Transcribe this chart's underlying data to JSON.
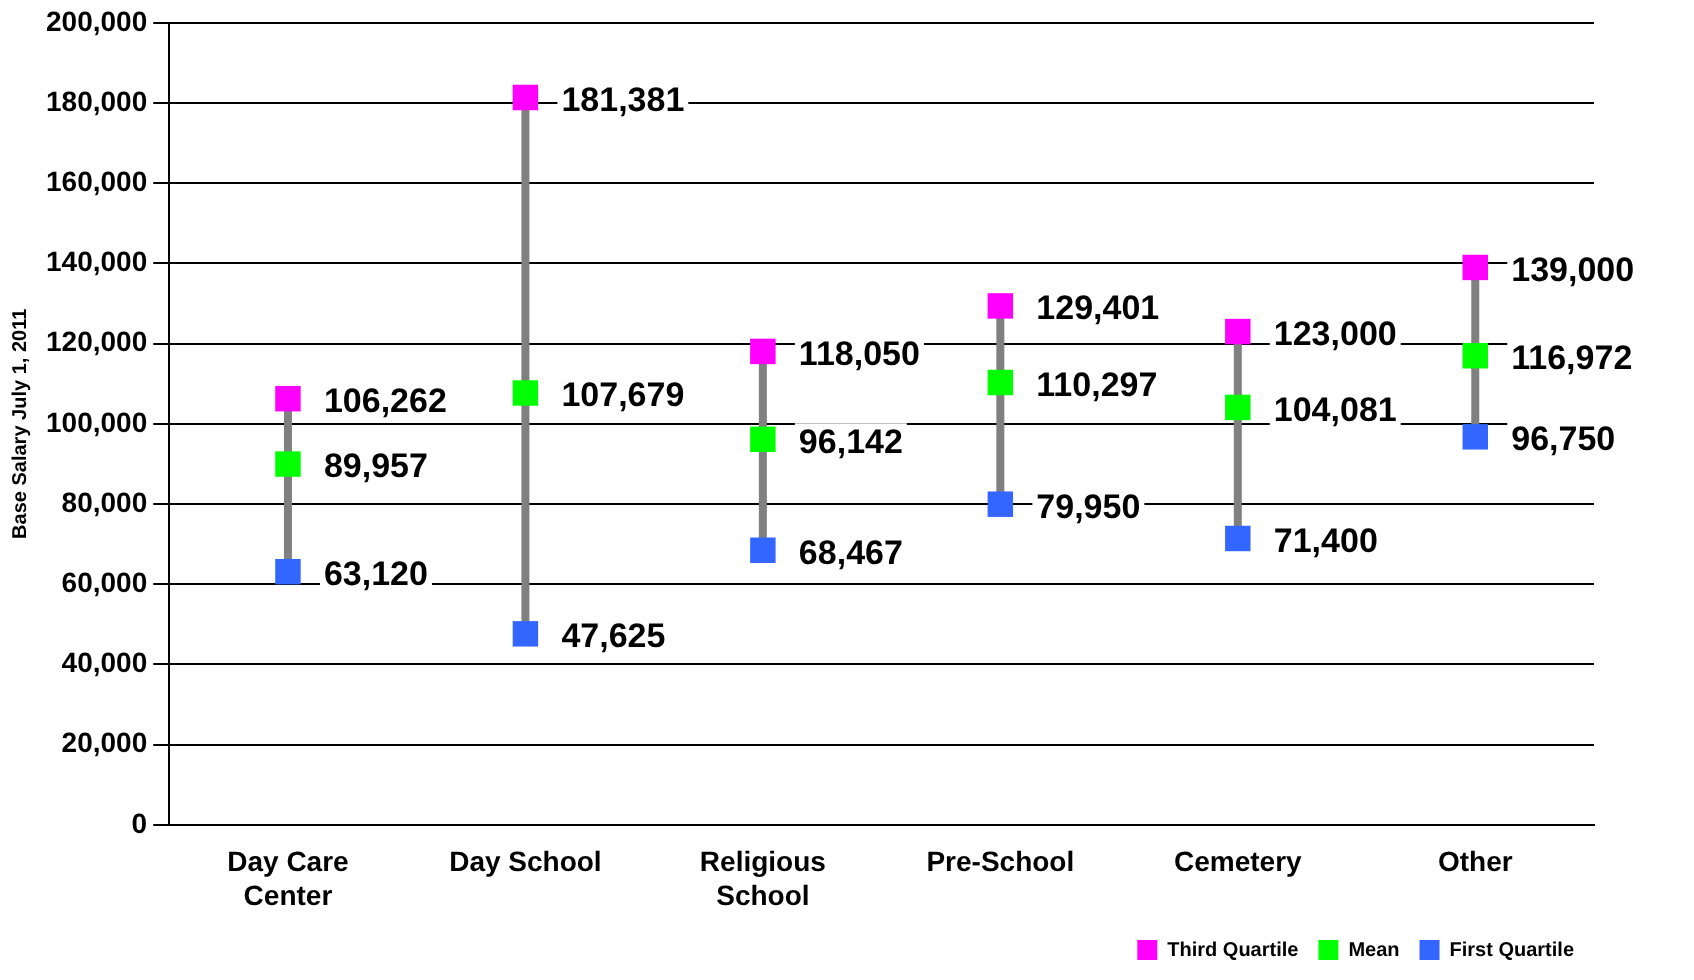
{
  "chart_data": {
    "type": "scatter",
    "ylabel": "Base Salary July 1, 2011",
    "categories": [
      "Day Care Center",
      "Day School",
      "Religious School",
      "Pre-School",
      "Cemetery",
      "Other"
    ],
    "series": [
      {
        "name": "Third Quartile",
        "color": "#ff00ff",
        "values": [
          106262,
          181381,
          118050,
          129401,
          123000,
          139000
        ],
        "value_labels": [
          "106,262",
          "181,381",
          "118,050",
          "129,401",
          "123,000",
          "139,000"
        ]
      },
      {
        "name": "Mean",
        "color": "#00ff00",
        "values": [
          89957,
          107679,
          96142,
          110297,
          104081,
          116972
        ],
        "value_labels": [
          "89,957",
          "107,679",
          "96,142",
          "110,297",
          "104,081",
          "116,972"
        ]
      },
      {
        "name": "First Quartile",
        "color": "#3366ff",
        "values": [
          63120,
          47625,
          68467,
          79950,
          71400,
          96750
        ],
        "value_labels": [
          "63,120",
          "47,625",
          "68,467",
          "79,950",
          "71,400",
          "96,750"
        ]
      }
    ],
    "ylim": [
      0,
      200000
    ],
    "yticks": [
      0,
      {
        "value": 20000,
        "label": "20,000"
      },
      {
        "value": 40000,
        "label": "40,000"
      },
      {
        "value": 60000,
        "label": "60,000"
      },
      {
        "value": 80000,
        "label": "80,000"
      },
      {
        "value": 100000,
        "label": "100,000"
      },
      {
        "value": 120000,
        "label": "120,000"
      },
      {
        "value": 140000,
        "label": "140,000"
      },
      {
        "value": 160000,
        "label": "160,000"
      },
      {
        "value": 180000,
        "label": "180,000"
      },
      {
        "value": 200000,
        "label": "200,000"
      }
    ],
    "grid": "y",
    "legend": "bottom right",
    "marker": "square"
  }
}
